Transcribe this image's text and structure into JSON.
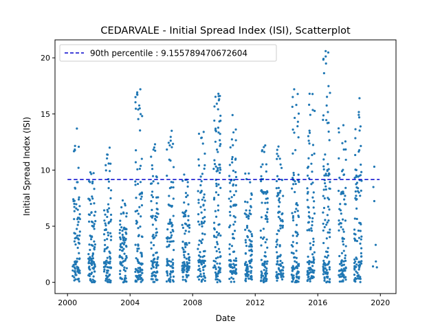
{
  "chart_data": {
    "type": "scatter",
    "title": "CEDARVALE - Initial Spread Index (ISI), Scatterplot",
    "xlabel": "Date",
    "ylabel": "Initial Spread Index (ISI)",
    "xlim": [
      1999.2,
      2021.0
    ],
    "ylim": [
      -1.0,
      21.6
    ],
    "x_ticks": [
      "2000",
      "2004",
      "2008",
      "2012",
      "2016",
      "2020"
    ],
    "y_ticks": [
      "0",
      "5",
      "10",
      "15",
      "20"
    ],
    "grid": false,
    "legend": {
      "placement": "top-left",
      "entries": [
        "90th percentile : 9.155789470672604"
      ]
    },
    "reference_line": {
      "name": "90th percentile : 9.155789470672604",
      "y": 9.155789470672604,
      "x_range": [
        2000.0,
        2019.95
      ],
      "color": "#0000cc",
      "style": "dashed"
    },
    "series": [
      {
        "color": "#1f77b4",
        "season_band": [
          0.33,
          0.8
        ],
        "seasons": [
          {
            "year": 2000,
            "max": 13.7,
            "p90": 8.0,
            "n": 90
          },
          {
            "year": 2001,
            "max": 9.8,
            "p90": 6.8,
            "n": 90
          },
          {
            "year": 2002,
            "max": 12.0,
            "p90": 7.0,
            "n": 90
          },
          {
            "year": 2003,
            "max": 7.3,
            "p90": 5.3,
            "n": 80
          },
          {
            "year": 2004,
            "max": 17.2,
            "p90": 10.0,
            "n": 100
          },
          {
            "year": 2005,
            "max": 12.3,
            "p90": 8.5,
            "n": 90
          },
          {
            "year": 2006,
            "max": 13.5,
            "p90": 8.5,
            "n": 90
          },
          {
            "year": 2007,
            "max": 9.6,
            "p90": 6.5,
            "n": 90
          },
          {
            "year": 2008,
            "max": 13.4,
            "p90": 8.8,
            "n": 90
          },
          {
            "year": 2009,
            "max": 16.8,
            "p90": 11.5,
            "n": 100
          },
          {
            "year": 2010,
            "max": 14.9,
            "p90": 10.5,
            "n": 100
          },
          {
            "year": 2011,
            "max": 9.7,
            "p90": 7.0,
            "n": 90
          },
          {
            "year": 2012,
            "max": 12.2,
            "p90": 9.0,
            "n": 90
          },
          {
            "year": 2013,
            "max": 12.1,
            "p90": 8.8,
            "n": 90
          },
          {
            "year": 2014,
            "max": 17.2,
            "p90": 10.5,
            "n": 100
          },
          {
            "year": 2015,
            "max": 16.8,
            "p90": 10.5,
            "n": 100
          },
          {
            "year": 2016,
            "max": 20.6,
            "p90": 11.0,
            "n": 110
          },
          {
            "year": 2017,
            "max": 14.0,
            "p90": 9.0,
            "n": 90
          },
          {
            "year": 2018,
            "max": 16.4,
            "p90": 11.0,
            "n": 100
          },
          {
            "year": 2019,
            "max": 10.3,
            "p90": 6.2,
            "n": 6
          }
        ]
      }
    ]
  }
}
